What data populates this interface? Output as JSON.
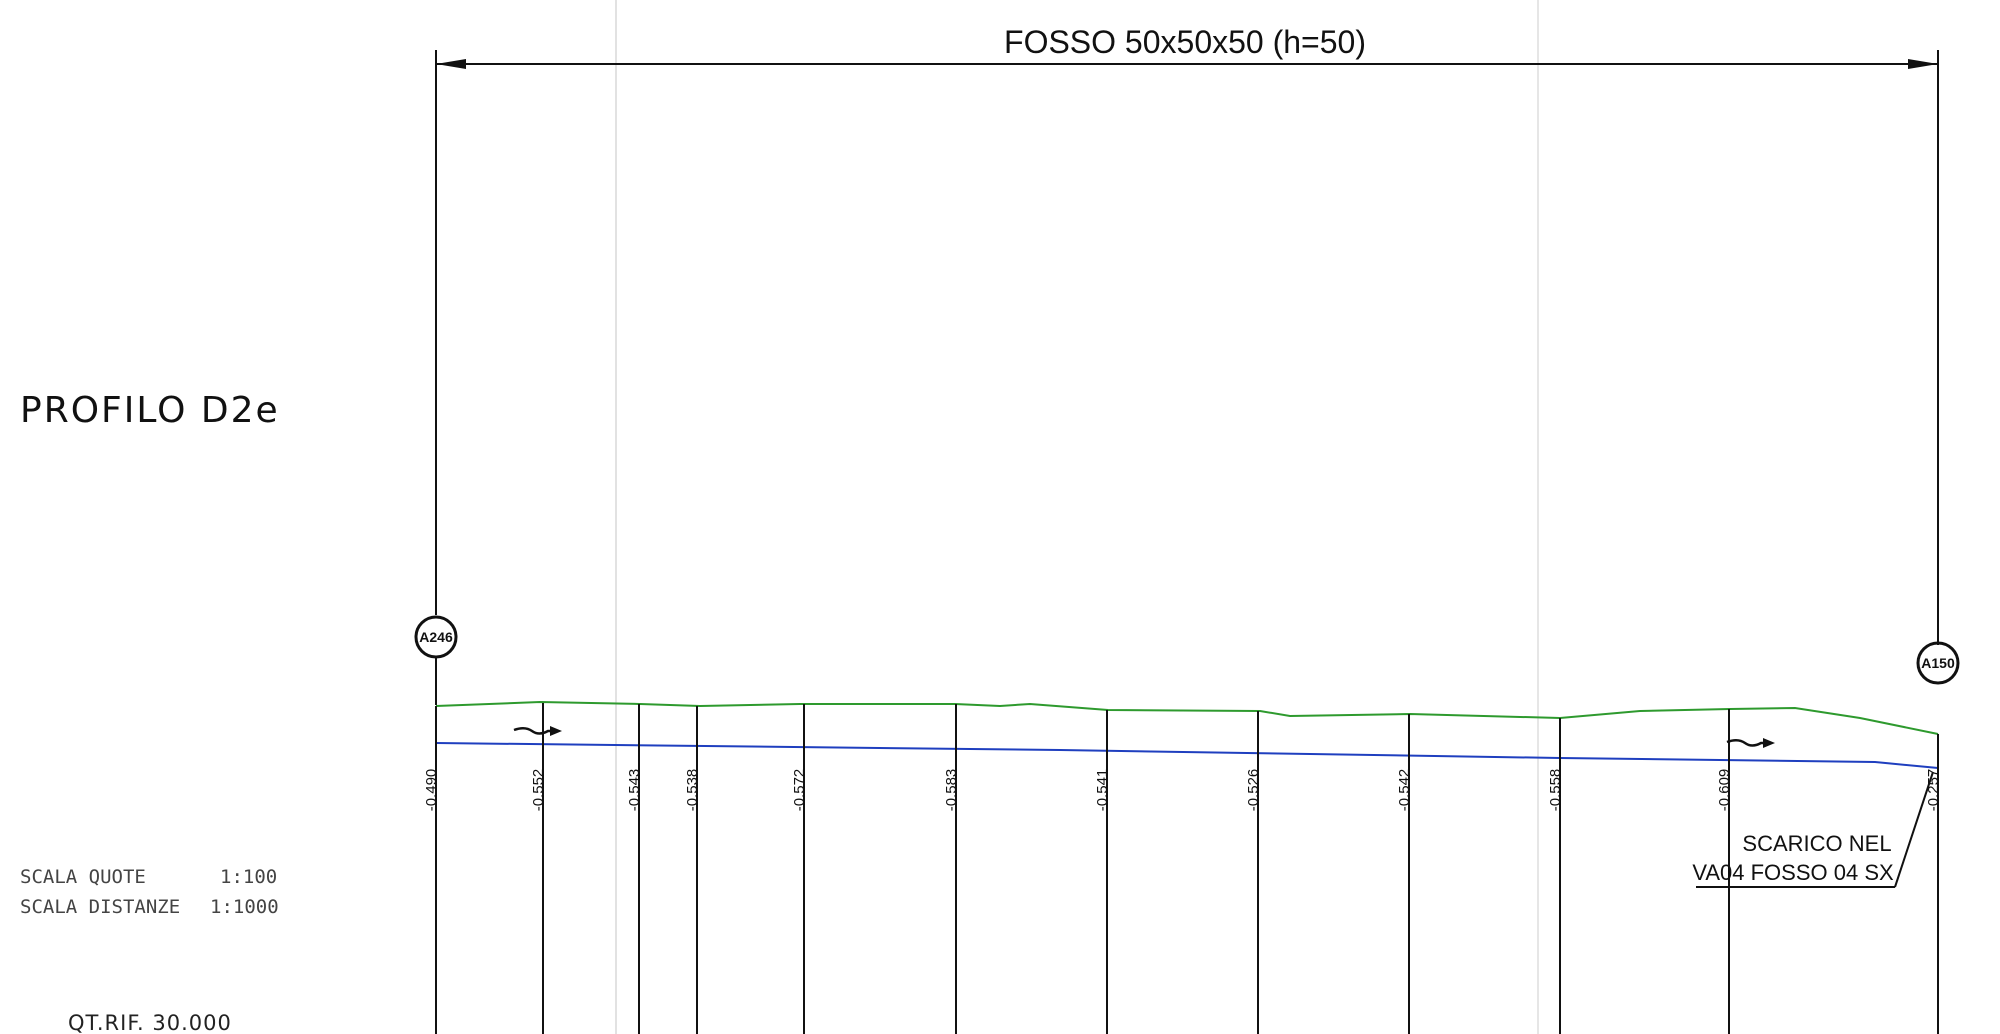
{
  "profile": {
    "title": "PROFILO D2e",
    "scale_quote_label": "SCALA QUOTE",
    "scale_quote_value": "1:100",
    "scale_dist_label": "SCALA DISTANZE",
    "scale_dist_value": "1:1000",
    "qt_rif": "QT.RIF. 30.000"
  },
  "dimension": {
    "label": "FOSSO 50x50x50 (h=50)"
  },
  "nodes": {
    "start": "A246",
    "end": "A150"
  },
  "note": {
    "line1": "SCARICO NEL",
    "line2": "VA04 FOSSO 04 SX"
  },
  "sections": {
    "values": [
      "-0.490",
      "-0.552",
      "-0.543",
      "-0.538",
      "-0.572",
      "-0.583",
      "-0.541",
      "-0.526",
      "-0.542",
      "-0.558",
      "-0.609",
      "-0.257"
    ]
  },
  "colors": {
    "ground_line": "#2e9a2e",
    "invert_line": "#1f3fbf",
    "ink": "#111111"
  }
}
